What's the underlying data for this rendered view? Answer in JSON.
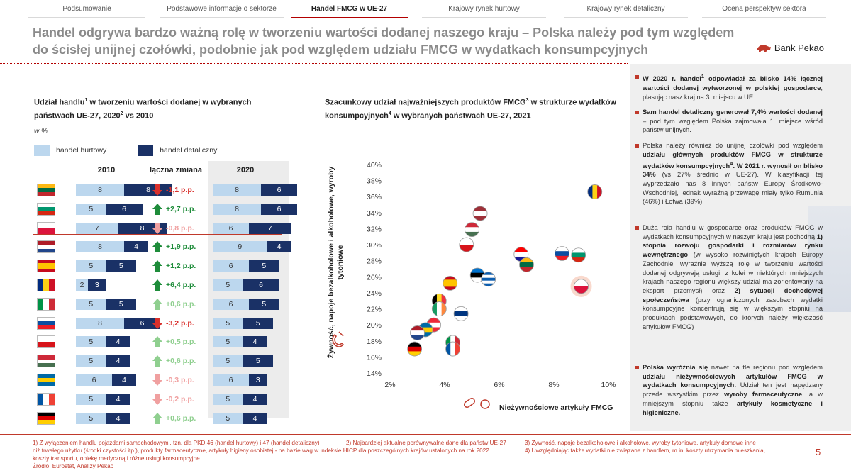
{
  "nav": {
    "tabs": [
      {
        "label": "Podsumowanie",
        "active": false
      },
      {
        "label": "Podstawowe informacje o sektorze",
        "active": false
      },
      {
        "label": "Handel FMCG w UE-27",
        "active": true
      },
      {
        "label": "Krajowy rynek hurtowy",
        "active": false
      },
      {
        "label": "Krajowy rynek detaliczny",
        "active": false
      },
      {
        "label": "Ocena perspektyw sektora",
        "active": false
      }
    ]
  },
  "header": {
    "title_line1": "Handel odgrywa bardzo ważną rolę w tworzeniu wartości dodanej naszego kraju – Polska należy pod tym względem",
    "title_line2": "do ścisłej unijnej czołówki, podobnie jak pod względem udziału FMCG w wydatkach konsumpcyjnych",
    "logo_text": "Bank Pekao"
  },
  "left_panel": {
    "title_a": "Udział handlu",
    "title_a_sup": "1",
    "title_b": " w tworzeniu wartości dodanej w wybranych państwach UE-27, 2020",
    "title_b_sup": "2",
    "title_c": " vs 2010",
    "unit": "w %",
    "legend_wholesale": "handel hurtowy",
    "legend_retail": "handel detaliczny",
    "col_2010": "2010",
    "col_change": "łączna zmiana",
    "col_2020": "2020"
  },
  "colors": {
    "wholesale": "#bcd7ee",
    "retail": "#1a3166",
    "up_strong": "#1e8c3a",
    "up_weak": "#8fcf8f",
    "down_strong": "#d9302c",
    "down_weak": "#f0a0a0",
    "accent": "#b30000"
  },
  "chart_data": [
    {
      "type": "bar",
      "subtype": "stacked-horizontal",
      "title": "Udział handlu w tworzeniu wartości dodanej w wybranych państwach UE-27, 2020 vs 2010",
      "unit": "w %",
      "series_names": [
        "handel hurtowy",
        "handel detaliczny"
      ],
      "rows": [
        {
          "country": "LT",
          "h2010": "8",
          "d2010": "8",
          "change": "-1,1 p.p.",
          "trend": "down_strong",
          "h2020": "8",
          "d2020": "6"
        },
        {
          "country": "BG",
          "h2010": "5",
          "d2010": "6",
          "change": "+2,7 p.p.",
          "trend": "up_strong",
          "h2020": "8",
          "d2020": "6"
        },
        {
          "country": "PL",
          "h2010": "7",
          "d2010": "8",
          "change": "-0,8 p.p.",
          "trend": "down_weak",
          "h2020": "6",
          "d2020": "7",
          "highlight": true
        },
        {
          "country": "NL",
          "h2010": "8",
          "d2010": "4",
          "change": "+1,9 p.p.",
          "trend": "up_strong",
          "h2020": "9",
          "d2020": "4"
        },
        {
          "country": "ES",
          "h2010": "5",
          "d2010": "5",
          "change": "+1,2 p.p.",
          "trend": "up_strong",
          "h2020": "6",
          "d2020": "5"
        },
        {
          "country": "RO",
          "h2010": "2",
          "d2010": "3",
          "change": "+6,4 p.p.",
          "trend": "up_strong",
          "h2020": "5",
          "d2020": "6"
        },
        {
          "country": "IT",
          "h2010": "5",
          "d2010": "5",
          "change": "+0,6 p.p.",
          "trend": "up_weak",
          "h2020": "6",
          "d2020": "5"
        },
        {
          "country": "SK",
          "h2010": "8",
          "d2010": "6",
          "change": "-3,2 p.p.",
          "trend": "down_strong",
          "h2020": "5",
          "d2020": "5"
        },
        {
          "country": "CZ",
          "h2010": "5",
          "d2010": "4",
          "change": "+0,5 p.p.",
          "trend": "up_weak",
          "h2020": "5",
          "d2020": "4"
        },
        {
          "country": "HU",
          "h2010": "5",
          "d2010": "4",
          "change": "+0,6 p.p.",
          "trend": "up_weak",
          "h2020": "5",
          "d2020": "5"
        },
        {
          "country": "SE",
          "h2010": "6",
          "d2010": "4",
          "change": "-0,3 p.p.",
          "trend": "down_weak",
          "h2020": "6",
          "d2020": "3"
        },
        {
          "country": "FR",
          "h2010": "5",
          "d2010": "4",
          "change": "-0,2 p.p.",
          "trend": "down_weak",
          "h2020": "5",
          "d2020": "4"
        },
        {
          "country": "DE",
          "h2010": "5",
          "d2010": "4",
          "change": "+0,6 p.p.",
          "trend": "up_weak",
          "h2020": "5",
          "d2020": "4"
        }
      ]
    },
    {
      "type": "scatter",
      "title": "Szacunkowy udział najważniejszych produktów FMCG w strukturze wydatków konsumpcyjnych w wybranych państwach UE-27, 2021",
      "xlabel": "Nieżywnościowe artykuły FMCG",
      "ylabel": "Żywność, napoje bezalkoholowe i alkoholowe, wyroby tytoniowe",
      "xlim": [
        2,
        10
      ],
      "ylim": [
        14,
        40
      ],
      "xticks": [
        "2%",
        "4%",
        "6%",
        "8%",
        "10%"
      ],
      "yticks": [
        "14%",
        "16%",
        "18%",
        "20%",
        "22%",
        "24%",
        "26%",
        "28%",
        "30%",
        "32%",
        "34%",
        "36%",
        "38%",
        "40%"
      ],
      "points": [
        {
          "country": "RO",
          "x": 9.5,
          "y": 36.6
        },
        {
          "country": "LV",
          "x": 5.3,
          "y": 33.9
        },
        {
          "country": "HU",
          "x": 5.0,
          "y": 31.9
        },
        {
          "country": "CZ",
          "x": 4.8,
          "y": 30.0
        },
        {
          "country": "HR",
          "x": 6.8,
          "y": 28.8
        },
        {
          "country": "SK",
          "x": 8.3,
          "y": 28.9
        },
        {
          "country": "BG",
          "x": 8.9,
          "y": 28.7
        },
        {
          "country": "LT",
          "x": 7.0,
          "y": 27.5
        },
        {
          "country": "PL",
          "x": 9.0,
          "y": 24.8,
          "highlight": true
        },
        {
          "country": "EE",
          "x": 5.2,
          "y": 26.2
        },
        {
          "country": "GR",
          "x": 5.6,
          "y": 25.7
        },
        {
          "country": "ES",
          "x": 4.2,
          "y": 25.2
        },
        {
          "country": "BE",
          "x": 3.8,
          "y": 23.0
        },
        {
          "country": "IE",
          "x": 3.8,
          "y": 22.0
        },
        {
          "country": "FI",
          "x": 4.6,
          "y": 21.4
        },
        {
          "country": "AT",
          "x": 3.6,
          "y": 20.0
        },
        {
          "country": "SE",
          "x": 3.3,
          "y": 19.4
        },
        {
          "country": "NL",
          "x": 3.0,
          "y": 19.0
        },
        {
          "country": "IT",
          "x": 4.3,
          "y": 17.8
        },
        {
          "country": "FR",
          "x": 4.3,
          "y": 17.0
        },
        {
          "country": "DE",
          "x": 2.9,
          "y": 17.0
        }
      ]
    }
  ],
  "middle_panel": {
    "title_a": "Szacunkowy udział najważniejszych produktów FMCG",
    "title_a_sup": "3",
    "title_b": " w strukturze wydatków konsumpcyjnych",
    "title_b_sup": "4",
    "title_c": " w wybranych państwach UE-27, 2021"
  },
  "right_panel": {
    "b1_pre": "W 2020 r. handel",
    "b1_sup": "1",
    "b1_bold": " odpowiadał za blisko 14% łącznej wartości dodanej wytworzonej w polskiej gospodarce",
    "b1_rest": ", plasując nasz kraj na 3. miejscu w UE.",
    "b2_bold": "Sam handel detaliczny generował 7,4% wartości dodanej",
    "b2_rest": " – pod tym względem Polska zajmowała 1. miejsce wśród państw unijnych.",
    "b3_pre": "Polska należy również do unijnej czołówki pod względem ",
    "b3_bold": "udziału głównych produktów FMCG w strukturze wydatków konsumpcyjnych",
    "b3_sup": "4",
    "b3_bold2": ". W 2021 r. wynosił on blisko 34%",
    "b3_rest": " (vs 27% średnio w UE-27). W klasyfikacji tej wyprzedzało nas 8 innych państw Europy Środkowo-Wschodniej, jednak wyraźną przewagę miały tylko Rumunia (46%) i Łotwa (39%).",
    "b4_pre": "Duża rola handlu w gospodarce oraz produktów FMCG w wydatkach konsumpcyjnych w naszym kraju jest pochodną ",
    "b4_bold1": "1) stopnia rozwoju gospodarki i rozmiarów rynku wewnętrznego",
    "b4_mid": " (w wysoko rozwiniętych krajach Europy Zachodniej wyraźnie wyższą rolę w tworzeniu wartości dodanej odgrywają usługi; z kolei w niektórych mniejszych krajach naszego regionu większy udział ma zorientowany na eksport przemysł) oraz ",
    "b4_bold2": "2) sytuacji dochodowej społeczeństwa",
    "b4_rest": " (przy ograniczonych zasobach wydatki konsumpcyjne koncentrują się w większym stopniu na produktach podstawowych, do których należy większość artykułów FMCG)",
    "b5_bold1": "Polska wyróżnia się",
    "b5_mid": " nawet na tle regionu pod względem ",
    "b5_bold2": "udziału nieżywnościowych artykułów FMCG w wydatkach konsumpcyjnych.",
    "b5_mid2": " Udział ten jest napędzany przede wszystkim przez ",
    "b5_bold3": "wyroby farmaceutyczne",
    "b5_mid3": ", a w mniejszym stopniu także ",
    "b5_bold4": "artykuły kosmetyczne i higieniczne."
  },
  "footer": {
    "note1": "1) Z wyłączeniem handlu pojazdami samochodowymi, tzn. dla PKD 46 (handel hurtowy) i 47 (handel detaliczny)",
    "note2": "2) Najbardziej aktualne porównywalne dane dla państw UE-27",
    "note3a": "3) Żywność, napoje bezalkoholowe i alkoholowe, wyroby tytoniowe, artykuły domowe inne",
    "note3b": "niż trwałego użytku (środki czystości itp.), produkty farmaceutyczne, artykuły higieny osobistej - na bazie wag w indeksie HICP dla poszczególnych krajów ustalonych na rok 2022",
    "note4": "4) Uwzględniając także wydatki nie związane z handlem, m.in. koszty utrzymania mieszkania,",
    "note4b": "koszty transportu, opiekę medyczną i różne usługi konsumpcyjne",
    "source": "Źródło: Eurostat, Analizy Pekao",
    "page": "5"
  }
}
